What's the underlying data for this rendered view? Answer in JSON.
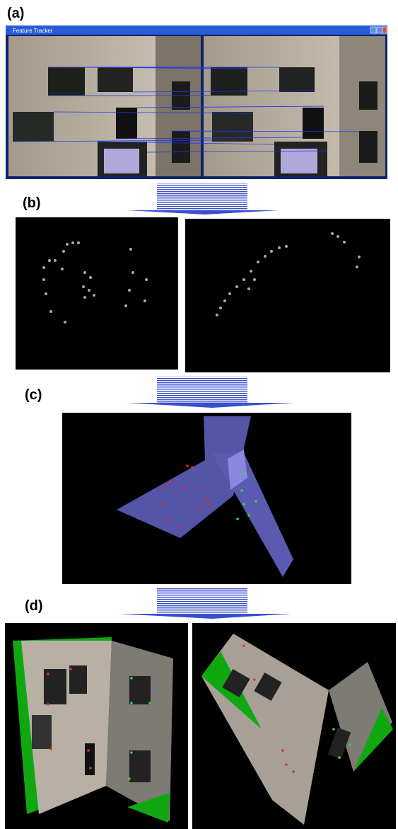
{
  "panels": {
    "a": {
      "label": "(a)",
      "window_title": "Feature Tracker"
    },
    "b": {
      "label": "(b)"
    },
    "c": {
      "label": "(c)"
    },
    "d": {
      "label": "(d)"
    }
  }
}
